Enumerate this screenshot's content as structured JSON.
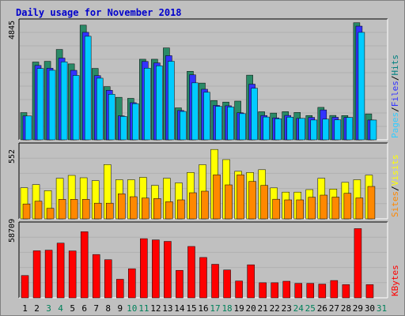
{
  "chart_data": {
    "type": "bar",
    "title": "Daily usage for November 2018",
    "days": [
      "1",
      "2",
      "3",
      "4",
      "5",
      "6",
      "7",
      "8",
      "9",
      "10",
      "11",
      "12",
      "13",
      "14",
      "15",
      "16",
      "17",
      "18",
      "19",
      "20",
      "21",
      "22",
      "23",
      "24",
      "25",
      "26",
      "27",
      "28",
      "29",
      "30",
      "31"
    ],
    "weekend_days": [
      "3",
      "4",
      "10",
      "11",
      "17",
      "18",
      "24",
      "25",
      "31"
    ],
    "panels": [
      {
        "name": "top",
        "max_label": "4845",
        "max": 4845,
        "legend": [
          {
            "text": "Pages",
            "color": "#33ccff"
          },
          {
            "text": "Files",
            "color": "#3333ff"
          },
          {
            "text": "Hits",
            "color": "#008080"
          }
        ],
        "series": [
          {
            "name": "Hits",
            "color": "#2a8a67",
            "values": [
              1121,
              3203,
              3232,
              3720,
              3126,
              4720,
              2940,
              2190,
              1751,
              1708,
              3318,
              3318,
              3784,
              1316,
              2821,
              2337,
              1619,
              1555,
              1594,
              2663,
              1156,
              1102,
              1160,
              1127,
              1001,
              1336,
              1005,
              1000,
              4820,
              1069,
              null
            ]
          },
          {
            "name": "Files",
            "color": "#3333ff",
            "values": [
              982,
              3062,
              2948,
              3365,
              2861,
              4425,
              2643,
              2038,
              987,
              1529,
              3226,
              3166,
              3464,
              1207,
              2675,
              2082,
              1416,
              1401,
              1114,
              2292,
              1002,
              905,
              1005,
              882,
              923,
              1232,
              928,
              923,
              4681,
              815,
              null
            ]
          },
          {
            "name": "Pages",
            "color": "#00ccff",
            "values": [
              982,
              2937,
              2864,
              3208,
              2650,
              4263,
              2538,
              1877,
              963,
              1490,
              2950,
              3049,
              3234,
              1169,
              2346,
              1958,
              1378,
              1353,
              1078,
              2124,
              940,
              867,
              936,
              882,
              817,
              852,
              824,
              923,
              4424,
              815,
              null
            ]
          }
        ]
      },
      {
        "name": "middle",
        "max_label": "552",
        "max": 552,
        "legend": [
          {
            "text": "Sites",
            "color": "#ff8800"
          },
          {
            "text": "Visits",
            "color": "#ffff00"
          }
        ],
        "series": [
          {
            "name": "Visits",
            "color": "#ffff00",
            "values": [
              236,
              260,
              214,
              308,
              330,
              312,
              290,
              412,
              297,
              297,
              315,
              254,
              308,
              273,
              352,
              411,
              527,
              450,
              361,
              352,
              373,
              235,
              203,
              203,
              222,
              308,
              226,
              277,
              297,
              332,
              null
            ]
          },
          {
            "name": "Sites",
            "color": "#ff8800",
            "values": [
              113,
              134,
              80,
              148,
              148,
              148,
              119,
              119,
              190,
              168,
              158,
              154,
              130,
              144,
              198,
              210,
              334,
              258,
              334,
              284,
              254,
              149,
              144,
              144,
              164,
              180,
              165,
              194,
              159,
              246,
              null
            ]
          }
        ]
      },
      {
        "name": "bottom",
        "max_label": "58709",
        "max": 58709,
        "legend": [
          {
            "text": "KBytes",
            "color": "#ff0000"
          }
        ],
        "series": [
          {
            "name": "KBytes",
            "color": "#ff0000",
            "values": [
              18000,
              38000,
              38500,
              44200,
              37900,
              53400,
              35000,
              30800,
              15000,
              23500,
              47800,
              46800,
              45600,
              22200,
              41500,
              32600,
              27100,
              22500,
              13600,
              26700,
              12200,
              12200,
              13400,
              11700,
              11700,
              11100,
              14000,
              10700,
              55900,
              10700,
              null
            ]
          }
        ]
      }
    ]
  }
}
